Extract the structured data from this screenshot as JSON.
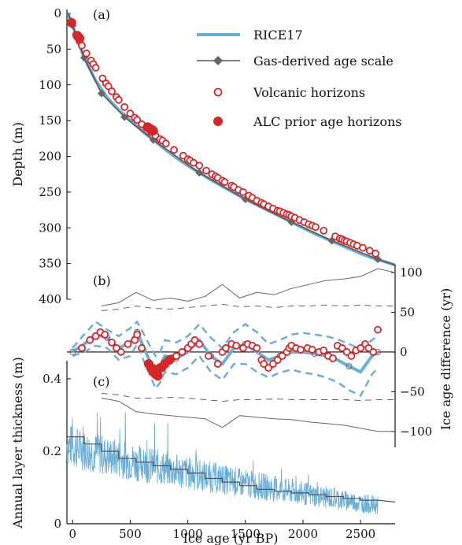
{
  "chart_data": [
    {
      "panel_label": "(a)",
      "type": "line",
      "ylabel": "Depth (m)",
      "ylim": [
        0,
        400
      ],
      "y_inverted": true,
      "yticks": [
        0,
        50,
        100,
        150,
        200,
        250,
        300,
        350,
        400
      ],
      "xlim": [
        -50,
        2800
      ],
      "legend_position": "top-right",
      "legend": [
        {
          "label": "RICE17",
          "style": "line",
          "color": "#6baed6"
        },
        {
          "label": "Gas-derived age scale",
          "style": "line-diamond",
          "color": "#555555"
        },
        {
          "label": "Volcanic horizons",
          "style": "open-circle",
          "color": "#d62728"
        },
        {
          "label": "ALC prior age horizons",
          "style": "filled-circle",
          "color": "#d62728"
        }
      ],
      "series": [
        {
          "name": "RICE17",
          "x": [
            -40,
            0,
            50,
            100,
            200,
            300,
            400,
            500,
            600,
            700,
            800,
            900,
            1000,
            1100,
            1200,
            1300,
            1400,
            1500,
            1600,
            1700,
            1800,
            1900,
            2000,
            2100,
            2200,
            2300,
            2400,
            2500,
            2600,
            2800
          ],
          "y": [
            0,
            17,
            40,
            62,
            94,
            118,
            135,
            150,
            164,
            177,
            190,
            202,
            213,
            223,
            233,
            242,
            251,
            260,
            268,
            276,
            284,
            292,
            300,
            308,
            315,
            322,
            329,
            336,
            342,
            352
          ]
        },
        {
          "name": "Gas-derived age scale",
          "x": [
            -40,
            0,
            100,
            250,
            450,
            700,
            1100,
            1500,
            1900,
            2250,
            2650,
            2800
          ],
          "y": [
            0,
            17,
            62,
            112,
            145,
            177,
            223,
            260,
            292,
            318,
            344,
            352
          ]
        },
        {
          "name": "Volcanic horizons",
          "x": [
            30,
            60,
            80,
            120,
            160,
            180,
            200,
            260,
            290,
            310,
            340,
            380,
            400,
            450,
            500,
            540,
            560,
            600,
            640,
            680,
            720,
            760,
            780,
            810,
            880,
            960,
            1000,
            1020,
            1050,
            1100,
            1160,
            1210,
            1240,
            1260,
            1300,
            1320,
            1380,
            1400,
            1440,
            1480,
            1530,
            1560,
            1600,
            1640,
            1660,
            1700,
            1740,
            1780,
            1800,
            1830,
            1860,
            1880,
            1900,
            1930,
            1970,
            2010,
            2050,
            2080,
            2110,
            2180,
            2280,
            2320,
            2340,
            2360,
            2380,
            2410,
            2440,
            2470,
            2520,
            2580,
            2630
          ],
          "y": [
            30,
            39,
            45,
            56,
            66,
            71,
            76,
            91,
            98,
            102,
            109,
            117,
            121,
            131,
            140,
            146,
            149,
            155,
            160,
            166,
            171,
            176,
            178,
            182,
            191,
            199,
            204,
            206,
            209,
            213,
            220,
            225,
            228,
            230,
            234,
            236,
            241,
            243,
            247,
            250,
            255,
            258,
            262,
            265,
            267,
            270,
            273,
            276,
            277,
            279,
            281,
            282,
            284,
            286,
            289,
            292,
            295,
            297,
            299,
            304,
            312,
            315,
            316,
            318,
            319,
            321,
            323,
            325,
            328,
            332,
            336
          ]
        },
        {
          "name": "ALC prior age horizons",
          "x": [
            -10,
            40,
            50,
            60,
            650,
            660,
            670,
            680,
            690,
            700
          ],
          "y": [
            13,
            31,
            33,
            35,
            159,
            160,
            161,
            162,
            163,
            164
          ]
        }
      ]
    },
    {
      "panel_label": "(b)",
      "type": "line",
      "ylabel": "Ice age difference (yr)",
      "ylim": [
        -120,
        110
      ],
      "yticks": [
        -100,
        -50,
        0,
        50,
        100
      ],
      "xlim": [
        -50,
        2800
      ],
      "series": [
        {
          "name": "RICE17",
          "x": [
            0,
            100,
            200,
            300,
            400,
            500,
            560,
            620,
            680,
            720,
            760,
            800,
            900,
            1000,
            1100,
            1200,
            1300,
            1400,
            1500,
            1600,
            1700,
            1800,
            1900,
            2000,
            2100,
            2200,
            2300,
            2400,
            2500,
            2600,
            2650
          ],
          "y": [
            0,
            10,
            22,
            18,
            5,
            12,
            25,
            5,
            -15,
            -25,
            -18,
            -5,
            -8,
            0,
            15,
            -5,
            -15,
            5,
            10,
            0,
            -10,
            -5,
            0,
            0,
            -2,
            -5,
            -10,
            -18,
            -25,
            -5,
            0
          ]
        },
        {
          "name": "RICE17 upper bound",
          "x": [
            0,
            100,
            200,
            300,
            400,
            500,
            560,
            620,
            680,
            720,
            760,
            800,
            900,
            1000,
            1100,
            1200,
            1300,
            1400,
            1500,
            1600,
            1700,
            1800,
            1900,
            2000,
            2100,
            2200,
            2300,
            2400,
            2500,
            2600,
            2650
          ],
          "y": [
            5,
            22,
            38,
            28,
            20,
            30,
            38,
            22,
            5,
            -5,
            0,
            15,
            12,
            20,
            35,
            18,
            5,
            25,
            35,
            25,
            10,
            15,
            22,
            24,
            22,
            20,
            16,
            10,
            4,
            15,
            20
          ]
        },
        {
          "name": "RICE17 lower bound",
          "x": [
            0,
            100,
            200,
            300,
            400,
            500,
            560,
            620,
            680,
            720,
            760,
            800,
            900,
            1000,
            1100,
            1200,
            1300,
            1400,
            1500,
            1600,
            1700,
            1800,
            1900,
            2000,
            2100,
            2200,
            2300,
            2400,
            2500,
            2600,
            2650
          ],
          "y": [
            -5,
            0,
            8,
            5,
            -10,
            -5,
            10,
            -12,
            -32,
            -46,
            -38,
            -25,
            -28,
            -20,
            -5,
            -25,
            -35,
            -15,
            -15,
            -25,
            -32,
            -26,
            -22,
            -26,
            -28,
            -32,
            -38,
            -48,
            -55,
            -28,
            -20
          ]
        },
        {
          "name": "Outer envelope (upper)",
          "x": [
            250,
            400,
            550,
            700,
            850,
            1000,
            1150,
            1300,
            1450,
            1600,
            1750,
            1900,
            2050,
            2200,
            2350,
            2500,
            2650,
            2800
          ],
          "y": [
            58,
            62,
            75,
            65,
            68,
            64,
            70,
            85,
            68,
            75,
            72,
            80,
            85,
            90,
            92,
            95,
            105,
            100
          ]
        },
        {
          "name": "Outer envelope (lower)",
          "x": [
            250,
            400,
            550,
            700,
            850,
            1000,
            1150,
            1300,
            1450,
            1600,
            1750,
            1900,
            2050,
            2200,
            2350,
            2500,
            2650,
            2800
          ],
          "y": [
            -58,
            -62,
            -75,
            -78,
            -80,
            -82,
            -84,
            -95,
            -80,
            -82,
            -84,
            -85,
            -88,
            -90,
            -92,
            -96,
            -100,
            -100
          ]
        },
        {
          "name": "Inner envelope (upper)",
          "x": [
            250,
            400,
            550,
            700,
            850,
            1000,
            1150,
            1300,
            1450,
            1600,
            1750,
            1900,
            2050,
            2200,
            2350,
            2500,
            2650,
            2800
          ],
          "y": [
            52,
            54,
            58,
            55,
            54,
            56,
            58,
            60,
            57,
            58,
            56,
            58,
            58,
            59,
            58,
            59,
            58,
            58
          ]
        },
        {
          "name": "Inner envelope (lower)",
          "x": [
            250,
            400,
            550,
            700,
            850,
            1000,
            1150,
            1300,
            1450,
            1600,
            1750,
            1900,
            2050,
            2200,
            2350,
            2500,
            2650,
            2800
          ],
          "y": [
            -52,
            -54,
            -58,
            -58,
            -57,
            -58,
            -60,
            -62,
            -60,
            -60,
            -59,
            -60,
            -60,
            -60,
            -60,
            -61,
            -60,
            -60
          ]
        },
        {
          "name": "Volcanic horizons",
          "x": [
            80,
            150,
            200,
            240,
            280,
            340,
            380,
            420,
            480,
            540,
            560,
            600,
            700,
            740,
            780,
            820,
            860,
            900,
            950,
            1000,
            1030,
            1060,
            1100,
            1180,
            1260,
            1300,
            1330,
            1380,
            1420,
            1480,
            1520,
            1560,
            1600,
            1640,
            1660,
            1700,
            1740,
            1780,
            1820,
            1860,
            1880,
            1900,
            1940,
            1980,
            2040,
            2080,
            2140,
            2180,
            2220,
            2260,
            2300,
            2340,
            2380,
            2420,
            2460,
            2500,
            2540,
            2570,
            2610,
            2650
          ],
          "y": [
            5,
            15,
            20,
            25,
            22,
            12,
            5,
            0,
            10,
            15,
            22,
            5,
            -20,
            -25,
            -20,
            -12,
            -8,
            -5,
            0,
            5,
            10,
            15,
            10,
            -5,
            -15,
            0,
            5,
            10,
            8,
            5,
            10,
            8,
            5,
            -10,
            -15,
            -20,
            -15,
            -10,
            -5,
            0,
            5,
            8,
            5,
            3,
            5,
            3,
            0,
            2,
            -5,
            -8,
            8,
            5,
            0,
            -5,
            2,
            5,
            10,
            5,
            0,
            28
          ]
        },
        {
          "name": "ALC prior age horizons",
          "x": [
            660,
            680,
            700,
            720,
            740,
            760,
            800,
            840
          ],
          "y": [
            -15,
            -20,
            -25,
            -28,
            -30,
            -20,
            -15,
            -10
          ]
        }
      ]
    },
    {
      "panel_label": "(c)",
      "type": "line",
      "ylabel": "Annual layer thickness (m)",
      "xlabel": "Ice age (yr BP)",
      "ylim": [
        0,
        0.45
      ],
      "yticks": [
        0,
        0.2,
        0.4
      ],
      "xlim": [
        -50,
        2800
      ],
      "xticks": [
        0,
        500,
        1000,
        1500,
        2000,
        2500
      ],
      "series": [
        {
          "name": "Annual layer thickness",
          "x_start": -50,
          "x_end": 2650,
          "trend": [
            0.22,
            0.05
          ],
          "noise": 0.05
        },
        {
          "name": "Binned mean",
          "x": [
            -50,
            100,
            250,
            400,
            550,
            700,
            850,
            1000,
            1150,
            1300,
            1450,
            1600,
            1750,
            1900,
            2050,
            2200,
            2350,
            2500,
            2650
          ],
          "y": [
            0.24,
            0.22,
            0.2,
            0.18,
            0.17,
            0.16,
            0.15,
            0.14,
            0.125,
            0.115,
            0.105,
            0.095,
            0.09,
            0.085,
            0.08,
            0.075,
            0.07,
            0.065,
            0.06
          ]
        }
      ]
    }
  ]
}
